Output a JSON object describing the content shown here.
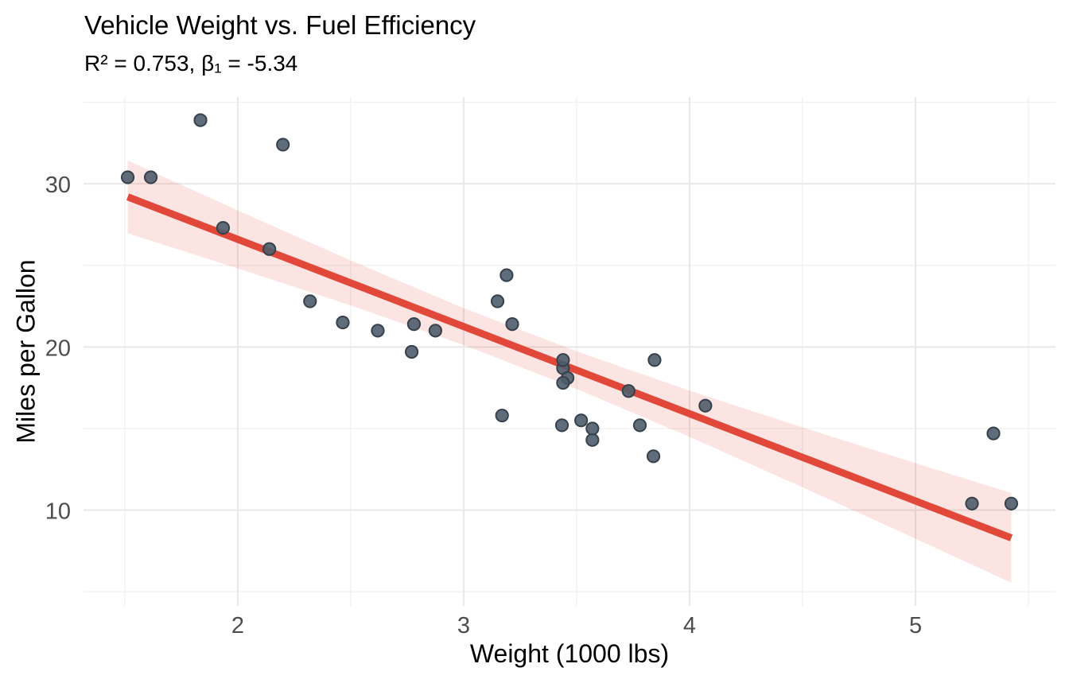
{
  "chart": {
    "title": "Vehicle Weight vs. Fuel Efficiency",
    "subtitle": "R² = 0.753, β₁ = -5.34",
    "xlabel": "Weight (1000 lbs)",
    "ylabel": "Miles per Gallon"
  },
  "chart_data": {
    "type": "scatter",
    "title": "Vehicle Weight vs. Fuel Efficiency",
    "subtitle": "R² = 0.753, β₁ = -5.34",
    "xlabel": "Weight (1000 lbs)",
    "ylabel": "Miles per Gallon",
    "xlim": [
      1.3174,
      5.6196
    ],
    "ylim": [
      4.13,
      35.32
    ],
    "x_ticks": [
      2,
      3,
      4,
      5
    ],
    "x_minor_ticks": [
      1.5,
      2.5,
      3.5,
      4.5,
      5.5
    ],
    "y_ticks": [
      10,
      20,
      30
    ],
    "y_minor_ticks": [
      5,
      15,
      25,
      35
    ],
    "grid": true,
    "legend": false,
    "points": [
      [
        2.62,
        21.0
      ],
      [
        2.875,
        21.0
      ],
      [
        2.32,
        22.8
      ],
      [
        3.215,
        21.4
      ],
      [
        3.44,
        18.7
      ],
      [
        3.46,
        18.1
      ],
      [
        3.57,
        14.3
      ],
      [
        3.19,
        24.4
      ],
      [
        3.15,
        22.8
      ],
      [
        3.44,
        19.2
      ],
      [
        3.44,
        17.8
      ],
      [
        4.07,
        16.4
      ],
      [
        3.73,
        17.3
      ],
      [
        3.78,
        15.2
      ],
      [
        5.25,
        10.4
      ],
      [
        5.424,
        10.4
      ],
      [
        5.345,
        14.7
      ],
      [
        2.2,
        32.4
      ],
      [
        1.615,
        30.4
      ],
      [
        1.835,
        33.9
      ],
      [
        2.465,
        21.5
      ],
      [
        3.52,
        15.5
      ],
      [
        3.435,
        15.2
      ],
      [
        3.84,
        13.3
      ],
      [
        3.845,
        19.2
      ],
      [
        1.935,
        27.3
      ],
      [
        2.14,
        26.0
      ],
      [
        1.513,
        30.4
      ],
      [
        3.17,
        15.8
      ],
      [
        2.77,
        19.7
      ],
      [
        3.57,
        15.0
      ],
      [
        2.78,
        21.4
      ]
    ],
    "regression": {
      "r_squared": 0.753,
      "slope": -5.3445,
      "intercept": 37.285,
      "x_range": [
        1.513,
        5.424
      ],
      "ci_band": [
        [
          1.513,
          26.96,
          31.43
        ],
        [
          2.0,
          24.82,
          28.37
        ],
        [
          2.5,
          22.55,
          25.3
        ],
        [
          3.0,
          20.12,
          22.38
        ],
        [
          3.5,
          17.43,
          19.73
        ],
        [
          4.0,
          14.49,
          17.32
        ],
        [
          4.5,
          11.4,
          15.07
        ],
        [
          5.0,
          8.25,
          12.88
        ],
        [
          5.424,
          5.55,
          11.05
        ]
      ]
    },
    "colors": {
      "point_fill": "#4E5C6A",
      "point_stroke": "#36414C",
      "line": "#E2483A",
      "ribbon_fill": "#E2483A",
      "ribbon_opacity": 0.15,
      "grid_major": "#E8E8E8",
      "grid_minor": "#F1F1F1",
      "tick_label": "#4D4D4D",
      "background": "#FFFFFF"
    }
  }
}
